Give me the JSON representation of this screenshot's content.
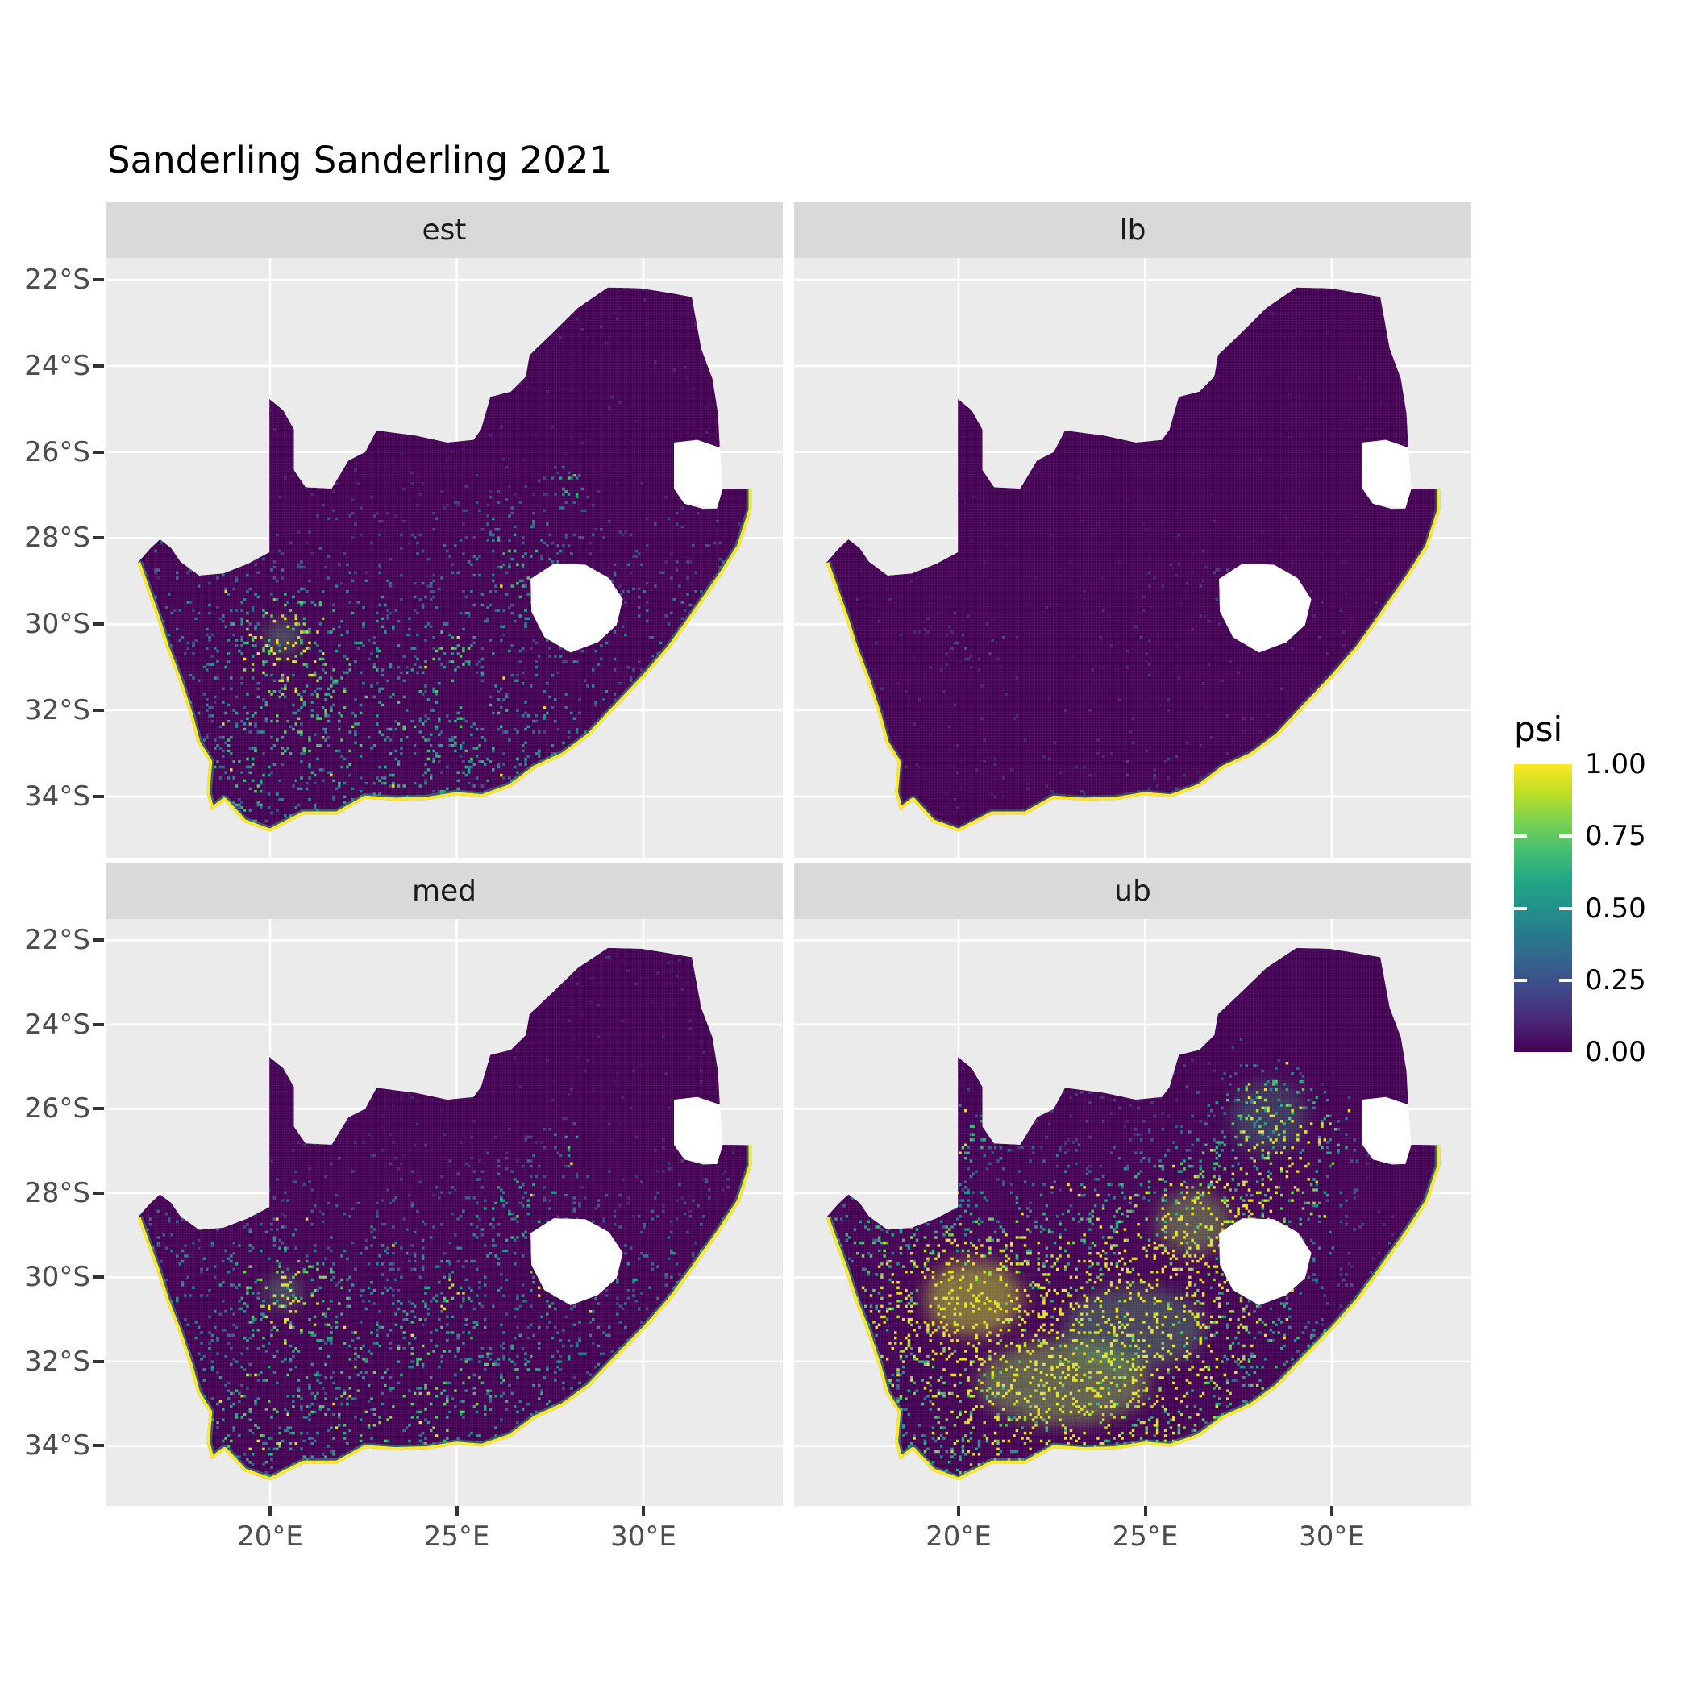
{
  "title": "Sanderling Sanderling 2021",
  "facet_labels": [
    "est",
    "lb",
    "med",
    "ub"
  ],
  "axis": {
    "x_tick_labels": [
      "20°E",
      "25°E",
      "30°E"
    ],
    "y_tick_labels": [
      "22°S",
      "24°S",
      "26°S",
      "28°S",
      "30°S",
      "32°S",
      "34°S"
    ]
  },
  "legend": {
    "title": "psi",
    "tick_labels": [
      "1.00",
      "0.75",
      "0.50",
      "0.25",
      "0.00"
    ]
  },
  "colors": {
    "panel_bg": "#EBEBEB",
    "strip_bg": "#D9D9D9",
    "grid": "#FFFFFF",
    "axis_text": "#4D4D4D",
    "tick_mark": "#333333",
    "map_base": "#440154",
    "coast": "#FDE725",
    "coast_inner": "#2BB07F",
    "na_enclave": "#FFFFFF",
    "viridis": [
      "#440154",
      "#482475",
      "#414487",
      "#355F8D",
      "#2A788E",
      "#21918C",
      "#22A884",
      "#44BF70",
      "#7AD151",
      "#BDDF26",
      "#FDE725"
    ]
  },
  "chart_data": {
    "type": "heatmap",
    "subtype": "faceted raster map of occupancy probability over South Africa",
    "title": "Sanderling Sanderling 2021",
    "variable": "psi",
    "palette": "viridis",
    "value_domain": [
      0.0,
      1.0
    ],
    "legend_breaks": [
      1.0,
      0.75,
      0.5,
      0.25,
      0.0
    ],
    "x_axis": {
      "ticks_deg_E": [
        20,
        25,
        30
      ],
      "range_deg_E": [
        15.6,
        33.7
      ]
    },
    "y_axis": {
      "ticks_deg_S": [
        22,
        24,
        26,
        28,
        30,
        32,
        34
      ],
      "range_deg_S": [
        21.5,
        35.4
      ]
    },
    "grid": "major white gridlines on gray panels",
    "legend_position": "right",
    "facets": [
      {
        "name": "est",
        "summary": "Point estimate: psi near 0 over most of the country; moderate teal speckling across the south-western interior and coastal belt; bright green cluster near 20.3E,30.3S; clusters near 26.6E,28.2S and 28E,26.8S; yellow coastline cells.",
        "render": {
          "seed": 7,
          "n": 7000,
          "base_north": 0.1,
          "base_south": 0.46,
          "v_gain": 0.92,
          "yellow_p": 0.012,
          "coast_green_opacity": 0.5,
          "hotspots": [
            [
              20.35,
              -30.3,
              0.75,
              0.7
            ],
            [
              26.55,
              -28.15,
              0.42,
              0.8
            ],
            [
              28.0,
              -26.75,
              0.85,
              0.28
            ],
            [
              24.85,
              -30.5,
              0.55,
              0.3
            ],
            [
              22.2,
              -32.3,
              0.22,
              1.6
            ],
            [
              25.3,
              -32.9,
              0.22,
              1.5
            ],
            [
              19.2,
              -33.7,
              0.28,
              0.8
            ],
            [
              27.1,
              -29.3,
              0.3,
              0.35
            ],
            [
              20.6,
              -31.6,
              0.2,
              1.1
            ]
          ],
          "blobs": [
            [
              20.35,
              -30.3,
              0.5,
              0.4,
              0.72,
              0.38
            ]
          ]
        }
      },
      {
        "name": "lb",
        "summary": "Lower bound: psi essentially 0 everywhere; very sparse faint speckles; thin yellow coastline; faint spots near 20.3E,30.3S and west of Lesotho.",
        "render": {
          "seed": 13,
          "n": 5200,
          "base_north": 0.045,
          "base_south": 0.15,
          "v_gain": 0.62,
          "yellow_p": 0.004,
          "coast_green_opacity": 0.35,
          "hotspots": [
            [
              20.35,
              -30.35,
              0.3,
              0.5
            ],
            [
              26.55,
              -28.3,
              0.18,
              0.6
            ],
            [
              27.05,
              -29.15,
              0.32,
              0.32
            ],
            [
              24.9,
              -30.5,
              0.18,
              0.3
            ],
            [
              24.5,
              -33.9,
              0.15,
              1.3
            ]
          ],
          "blobs": []
        }
      },
      {
        "name": "med",
        "summary": "Median: very similar to the point estimate, slightly denser teal speckling; bright cluster near 20.3E,30.3S; yellow streak south-west of Lesotho; yellow coastline.",
        "render": {
          "seed": 21,
          "n": 7200,
          "base_north": 0.11,
          "base_south": 0.48,
          "v_gain": 0.98,
          "yellow_p": 0.016,
          "coast_green_opacity": 0.5,
          "hotspots": [
            [
              20.35,
              -30.35,
              0.78,
              0.7
            ],
            [
              26.6,
              -28.2,
              0.4,
              0.8
            ],
            [
              28.0,
              -26.75,
              0.8,
              0.28
            ],
            [
              24.85,
              -30.45,
              0.6,
              0.32
            ],
            [
              27.3,
              -30.2,
              0.5,
              0.35
            ],
            [
              22.3,
              -32.4,
              0.25,
              1.6
            ],
            [
              25.4,
              -33.0,
              0.25,
              1.4
            ],
            [
              19.2,
              -33.7,
              0.28,
              0.8
            ]
          ],
          "blobs": [
            [
              20.35,
              -30.35,
              0.5,
              0.4,
              0.72,
              0.4
            ]
          ]
        }
      },
      {
        "name": "ub",
        "summary": "Upper bound: high psi (green-yellow) over most of the western and central interior (Northern Cape, Karoo, Free State) and around Gauteng; dark low-psi northeast (Limpopo/Kruger) and KwaZulu-Natal; yellow coastline.",
        "render": {
          "seed": 42,
          "n": 8500,
          "base_north": 0.17,
          "base_south": 0.66,
          "v_gain": 1.12,
          "yellow_p": 0.05,
          "coast_green_opacity": 0.55,
          "hotspots": [
            [
              20.45,
              -30.6,
              0.95,
              1.0
            ],
            [
              22.7,
              -32.4,
              0.8,
              1.6
            ],
            [
              26.25,
              -28.6,
              0.9,
              0.95
            ],
            [
              28.3,
              -26.1,
              0.85,
              0.95
            ],
            [
              24.9,
              -30.9,
              0.75,
              1.3
            ],
            [
              20.15,
              -26.6,
              0.7,
              0.45
            ],
            [
              28.8,
              -28.3,
              0.45,
              0.8
            ],
            [
              19.2,
              -30.6,
              0.5,
              0.9
            ],
            [
              29.7,
              -26.7,
              0.5,
              0.7
            ],
            [
              30.9,
              -23.4,
              -0.5,
              1.8
            ],
            [
              30.7,
              -30.2,
              -0.45,
              1.2
            ],
            [
              31.7,
              -27.8,
              -0.35,
              1.0
            ]
          ],
          "blobs": [
            [
              20.4,
              -30.5,
              1.3,
              0.9,
              0.9,
              0.5
            ],
            [
              22.8,
              -32.5,
              2.3,
              1.0,
              0.82,
              0.45
            ],
            [
              26.3,
              -28.7,
              1.0,
              0.75,
              0.82,
              0.4
            ],
            [
              24.7,
              -31.2,
              1.9,
              1.0,
              0.72,
              0.35
            ],
            [
              28.3,
              -26.2,
              1.0,
              0.85,
              0.65,
              0.3
            ]
          ]
        }
      }
    ],
    "geo": {
      "border": [
        [
          16.45,
          -28.58
        ],
        [
          16.78,
          -28.25
        ],
        [
          17.05,
          -28.03
        ],
        [
          17.35,
          -28.23
        ],
        [
          17.6,
          -28.55
        ],
        [
          18.1,
          -28.87
        ],
        [
          18.75,
          -28.82
        ],
        [
          19.4,
          -28.6
        ],
        [
          19.98,
          -28.33
        ],
        [
          19.98,
          -24.77
        ],
        [
          20.35,
          -25.03
        ],
        [
          20.64,
          -25.48
        ],
        [
          20.64,
          -26.42
        ],
        [
          20.95,
          -26.82
        ],
        [
          21.65,
          -26.85
        ],
        [
          22.1,
          -26.2
        ],
        [
          22.55,
          -26.0
        ],
        [
          22.85,
          -25.5
        ],
        [
          23.9,
          -25.62
        ],
        [
          24.75,
          -25.78
        ],
        [
          25.45,
          -25.72
        ],
        [
          25.65,
          -25.48
        ],
        [
          25.9,
          -24.72
        ],
        [
          26.45,
          -24.6
        ],
        [
          26.85,
          -24.25
        ],
        [
          26.95,
          -23.75
        ],
        [
          27.55,
          -23.25
        ],
        [
          28.25,
          -22.65
        ],
        [
          29.05,
          -22.18
        ],
        [
          29.95,
          -22.2
        ],
        [
          30.65,
          -22.3
        ],
        [
          31.3,
          -22.4
        ],
        [
          31.55,
          -23.6
        ],
        [
          31.85,
          -24.3
        ],
        [
          32.0,
          -25.1
        ],
        [
          32.05,
          -25.9
        ],
        [
          31.4,
          -25.72
        ],
        [
          30.95,
          -26.25
        ],
        [
          30.82,
          -26.85
        ],
        [
          31.1,
          -27.2
        ],
        [
          31.6,
          -27.32
        ],
        [
          31.97,
          -27.31
        ],
        [
          32.13,
          -26.85
        ],
        [
          32.9,
          -26.86
        ]
      ],
      "coast": [
        [
          32.9,
          -26.86
        ],
        [
          32.9,
          -27.35
        ],
        [
          32.58,
          -28.2
        ],
        [
          32.05,
          -28.92
        ],
        [
          31.3,
          -29.85
        ],
        [
          30.72,
          -30.55
        ],
        [
          30.05,
          -31.22
        ],
        [
          29.25,
          -31.95
        ],
        [
          28.55,
          -32.6
        ],
        [
          27.85,
          -33.05
        ],
        [
          27.1,
          -33.35
        ],
        [
          26.45,
          -33.78
        ],
        [
          25.68,
          -34.02
        ],
        [
          25.0,
          -33.97
        ],
        [
          24.2,
          -34.08
        ],
        [
          23.35,
          -34.1
        ],
        [
          22.55,
          -34.05
        ],
        [
          21.8,
          -34.42
        ],
        [
          20.9,
          -34.42
        ],
        [
          20.0,
          -34.82
        ],
        [
          19.3,
          -34.6
        ],
        [
          18.78,
          -34.1
        ],
        [
          18.43,
          -34.33
        ],
        [
          18.3,
          -33.9
        ],
        [
          18.37,
          -33.2
        ],
        [
          18.05,
          -32.75
        ],
        [
          17.85,
          -32.1
        ],
        [
          17.55,
          -31.3
        ],
        [
          17.22,
          -30.55
        ],
        [
          16.95,
          -29.8
        ],
        [
          16.68,
          -29.15
        ],
        [
          16.45,
          -28.58
        ]
      ],
      "lesotho": [
        [
          26.98,
          -28.95
        ],
        [
          27.6,
          -28.6
        ],
        [
          28.45,
          -28.62
        ],
        [
          29.08,
          -28.93
        ],
        [
          29.45,
          -29.42
        ],
        [
          29.28,
          -30.02
        ],
        [
          28.78,
          -30.42
        ],
        [
          28.05,
          -30.66
        ],
        [
          27.35,
          -30.3
        ],
        [
          27.0,
          -29.7
        ]
      ],
      "eswatini": [
        [
          30.82,
          -25.78
        ],
        [
          31.45,
          -25.72
        ],
        [
          32.05,
          -25.9
        ],
        [
          32.13,
          -26.85
        ],
        [
          31.97,
          -27.31
        ],
        [
          31.1,
          -27.2
        ],
        [
          30.82,
          -26.85
        ]
      ]
    }
  }
}
